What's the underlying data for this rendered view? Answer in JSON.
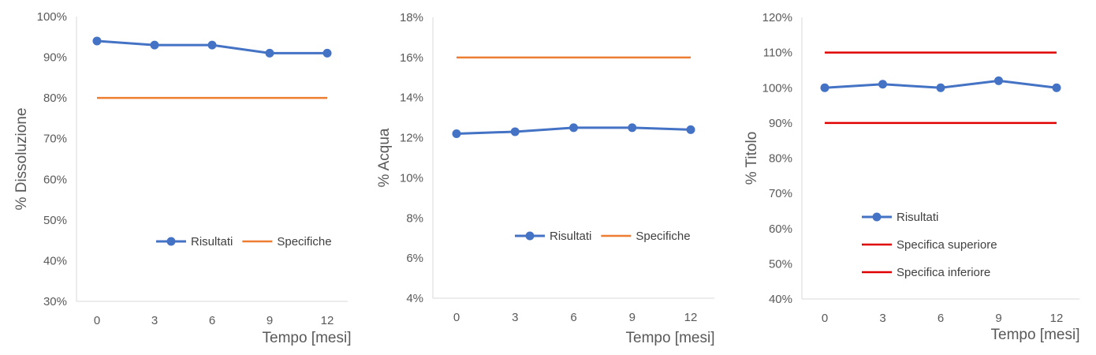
{
  "chart_data": [
    {
      "type": "line",
      "xlabel": "Tempo [mesi]",
      "ylabel": "% Dissoluzione",
      "x": [
        0,
        3,
        6,
        9,
        12
      ],
      "x_tick_labels": [
        "0",
        "3",
        "6",
        "9",
        "12"
      ],
      "ylim": [
        30,
        100
      ],
      "y_ticks": [
        30,
        40,
        50,
        60,
        70,
        80,
        90,
        100
      ],
      "y_tick_labels": [
        "30%",
        "40%",
        "50%",
        "60%",
        "70%",
        "80%",
        "90%",
        "100%"
      ],
      "series": [
        {
          "name": "Risultati",
          "values": [
            94,
            93,
            93,
            91,
            91
          ],
          "color": "#4472C4",
          "markers": true
        },
        {
          "name": "Specifiche",
          "values": [
            80,
            80,
            80,
            80,
            80
          ],
          "color": "#ED7D31",
          "markers": false
        }
      ],
      "legend_position": "bottom-right",
      "legend_layout": "row",
      "grid": false
    },
    {
      "type": "line",
      "xlabel": "Tempo [mesi]",
      "ylabel": "% Acqua",
      "x": [
        0,
        3,
        6,
        9,
        12
      ],
      "x_tick_labels": [
        "0",
        "3",
        "6",
        "9",
        "12"
      ],
      "ylim": [
        4,
        18
      ],
      "y_ticks": [
        4,
        6,
        8,
        10,
        12,
        14,
        16,
        18
      ],
      "y_tick_labels": [
        "4%",
        "6%",
        "8%",
        "10%",
        "12%",
        "14%",
        "16%",
        "18%"
      ],
      "series": [
        {
          "name": "Risultati",
          "values": [
            12.2,
            12.3,
            12.5,
            12.5,
            12.4
          ],
          "color": "#4472C4",
          "markers": true
        },
        {
          "name": "Specifiche",
          "values": [
            16,
            16,
            16,
            16,
            16
          ],
          "color": "#ED7D31",
          "markers": false
        }
      ],
      "legend_position": "bottom-right",
      "legend_layout": "row",
      "grid": false
    },
    {
      "type": "line",
      "xlabel": "Tempo [mesi]",
      "ylabel": "% Titolo",
      "x": [
        0,
        3,
        6,
        9,
        12
      ],
      "x_tick_labels": [
        "0",
        "3",
        "6",
        "9",
        "12"
      ],
      "ylim": [
        40,
        120
      ],
      "y_ticks": [
        40,
        50,
        60,
        70,
        80,
        90,
        100,
        110,
        120
      ],
      "y_tick_labels": [
        "40%",
        "50%",
        "60%",
        "70%",
        "80%",
        "90%",
        "100%",
        "110%",
        "120%"
      ],
      "series": [
        {
          "name": "Risultati",
          "values": [
            100,
            101,
            100,
            102,
            100
          ],
          "color": "#4472C4",
          "markers": true
        },
        {
          "name": "Specifica superiore",
          "values": [
            110,
            110,
            110,
            110,
            110
          ],
          "color": "#E00000",
          "markers": false
        },
        {
          "name": "Specifica inferiore",
          "values": [
            90,
            90,
            90,
            90,
            90
          ],
          "color": "#E00000",
          "markers": false
        }
      ],
      "legend_position": "bottom-left",
      "legend_layout": "column",
      "grid": false
    }
  ]
}
